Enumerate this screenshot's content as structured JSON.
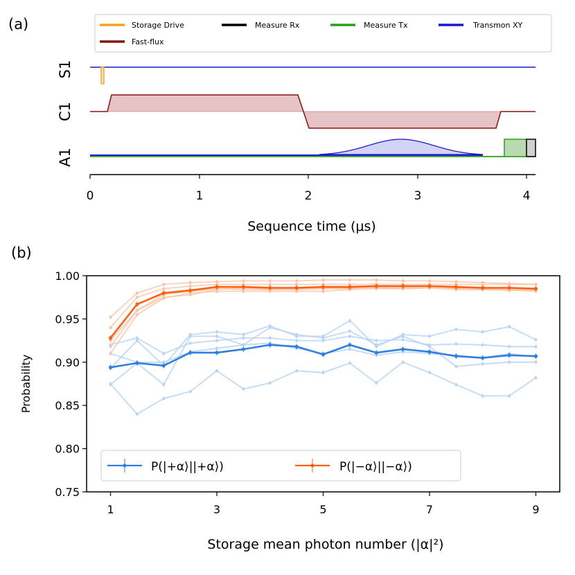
{
  "colors": {
    "storage": "#f5a21b",
    "flux": "#8b1010",
    "flux_fill": "#e6c3c4",
    "rx": "#000000",
    "tx": "#2aa01a",
    "tx_fill": "#b9d9b1",
    "xy": "#1a1acc",
    "xy_fill": "#d3d3f5",
    "plus": "#2f7fe0",
    "plus_light": "#b7d3f4",
    "minus": "#ff6010",
    "minus_light": "#fbc3a5",
    "rx_fill": "#d0d0d0"
  },
  "chart_data": [
    {
      "type": "line",
      "panel_label": "(a)",
      "title": "",
      "xlabel": "Sequence time (μs)",
      "xlim": [
        0,
        4.08
      ],
      "xticks": [
        "0",
        "1",
        "2",
        "3",
        "4"
      ],
      "channels": [
        "S1",
        "C1",
        "A1"
      ],
      "legend": [
        "Storage Drive",
        "Measure Rx",
        "Measure Tx",
        "Transmon XY",
        "Fast-flux"
      ],
      "pulses": [
        {
          "channel": "S1",
          "name": "Storage Drive",
          "start": 0.1,
          "end": 0.13
        },
        {
          "channel": "C1",
          "name": "Fast-flux",
          "segments": [
            [
              0.16,
              0.2,
              "rise"
            ],
            [
              0.2,
              1.9,
              "high"
            ],
            [
              1.9,
              2.0,
              "fall"
            ],
            [
              2.0,
              3.68,
              "low"
            ],
            [
              3.68,
              3.75,
              "rise"
            ]
          ]
        },
        {
          "channel": "A1",
          "name": "Transmon XY",
          "start": 2.1,
          "end": 3.6,
          "shape": "gaussian",
          "peak_time": 2.85
        },
        {
          "channel": "A1",
          "name": "Measure Tx",
          "start": 3.8,
          "end": 4.0
        },
        {
          "channel": "A1",
          "name": "Measure Rx",
          "start": 4.0,
          "end": 4.08
        }
      ]
    },
    {
      "type": "line",
      "panel_label": "(b)",
      "title": "",
      "xlabel": "Storage mean photon number (|α|²)",
      "ylabel": "Probability",
      "x": [
        1,
        1.5,
        2,
        2.5,
        3,
        3.5,
        4,
        4.5,
        5,
        5.5,
        6,
        6.5,
        7,
        7.5,
        8,
        8.5,
        9
      ],
      "xlim": [
        0.55,
        9.45
      ],
      "ylim": [
        0.75,
        1.0
      ],
      "xticks": [
        "1",
        "3",
        "5",
        "7",
        "9"
      ],
      "yticks": [
        "0.75",
        "0.80",
        "0.85",
        "0.90",
        "0.95",
        "1.00"
      ],
      "legend_position": "bottom-left",
      "series": [
        {
          "name": "P(|+α⟩||+α⟩)",
          "values": [
            0.894,
            0.899,
            0.896,
            0.911,
            0.911,
            0.915,
            0.92,
            0.918,
            0.909,
            0.92,
            0.911,
            0.915,
            0.912,
            0.907,
            0.905,
            0.908,
            0.907
          ],
          "color": "plus"
        },
        {
          "name": "P(|−α⟩||−α⟩)",
          "values": [
            0.928,
            0.967,
            0.98,
            0.983,
            0.987,
            0.987,
            0.986,
            0.986,
            0.987,
            0.987,
            0.988,
            0.988,
            0.988,
            0.987,
            0.986,
            0.986,
            0.985
          ],
          "color": "minus"
        }
      ],
      "plus_repeats": [
        [
          0.875,
          0.84,
          0.858,
          0.866,
          0.89,
          0.869,
          0.876,
          0.89,
          0.888,
          0.899,
          0.876,
          0.9,
          0.888,
          0.874,
          0.861,
          0.861,
          0.882
        ],
        [
          0.893,
          0.925,
          0.896,
          0.932,
          0.935,
          0.932,
          0.942,
          0.93,
          0.93,
          0.948,
          0.918,
          0.932,
          0.93,
          0.938,
          0.935,
          0.941,
          0.926
        ],
        [
          0.874,
          0.899,
          0.874,
          0.93,
          0.93,
          0.92,
          0.94,
          0.932,
          0.928,
          0.936,
          0.92,
          0.93,
          0.918,
          0.895,
          0.898,
          0.9,
          0.9
        ],
        [
          0.92,
          0.928,
          0.91,
          0.922,
          0.925,
          0.928,
          0.928,
          0.925,
          0.925,
          0.93,
          0.925,
          0.926,
          0.92,
          0.921,
          0.92,
          0.918,
          0.918
        ],
        [
          0.91,
          0.9,
          0.9,
          0.912,
          0.916,
          0.92,
          0.922,
          0.916,
          0.91,
          0.915,
          0.908,
          0.912,
          0.91,
          0.908,
          0.905,
          0.91,
          0.906
        ]
      ],
      "minus_repeats": [
        [
          0.952,
          0.98,
          0.99,
          0.992,
          0.993,
          0.994,
          0.994,
          0.994,
          0.995,
          0.995,
          0.995,
          0.994,
          0.994,
          0.993,
          0.992,
          0.991,
          0.99
        ],
        [
          0.94,
          0.975,
          0.985,
          0.988,
          0.99,
          0.99,
          0.99,
          0.99,
          0.99,
          0.99,
          0.99,
          0.99,
          0.99,
          0.99,
          0.99,
          0.99,
          0.99
        ],
        [
          0.925,
          0.96,
          0.975,
          0.978,
          0.984,
          0.986,
          0.984,
          0.985,
          0.986,
          0.986,
          0.987,
          0.986,
          0.988,
          0.986,
          0.985,
          0.984,
          0.984
        ],
        [
          0.91,
          0.955,
          0.974,
          0.98,
          0.982,
          0.982,
          0.982,
          0.982,
          0.982,
          0.984,
          0.986,
          0.985,
          0.986,
          0.985,
          0.984,
          0.984,
          0.982
        ],
        [
          0.918,
          0.96,
          0.978,
          0.982,
          0.985,
          0.984,
          0.984,
          0.984,
          0.985,
          0.985,
          0.985,
          0.985,
          0.986,
          0.984,
          0.984,
          0.983,
          0.983
        ]
      ]
    }
  ]
}
